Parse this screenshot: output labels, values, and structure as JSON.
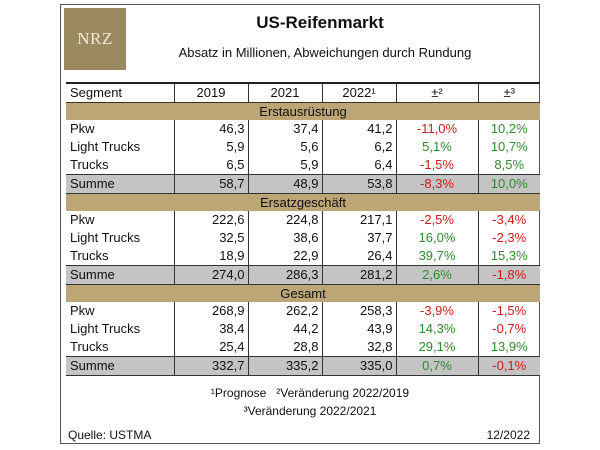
{
  "logo_text": "NRZ",
  "title": "US-Reifenmarkt",
  "subtitle": "Absatz in Millionen, Abweichungen durch Rundung",
  "columns": [
    "Segment",
    "2019",
    "2021",
    "2022¹",
    "±²",
    "±³"
  ],
  "sections": [
    {
      "name": "Erstausrüstung",
      "rows": [
        {
          "segment": "Pkw",
          "v2019": "46,3",
          "v2021": "37,4",
          "v2022": "41,2",
          "d2": "-11,0%",
          "d3": "10,2%"
        },
        {
          "segment": "Light Trucks",
          "v2019": "5,9",
          "v2021": "5,6",
          "v2022": "6,2",
          "d2": "5,1%",
          "d3": "10,7%"
        },
        {
          "segment": "Trucks",
          "v2019": "6,5",
          "v2021": "5,9",
          "v2022": "6,4",
          "d2": "-1,5%",
          "d3": "8,5%"
        }
      ],
      "sum": {
        "segment": "Summe",
        "v2019": "58,7",
        "v2021": "48,9",
        "v2022": "53,8",
        "d2": "-8,3%",
        "d3": "10,0%"
      }
    },
    {
      "name": "Ersatzgeschäft",
      "rows": [
        {
          "segment": "Pkw",
          "v2019": "222,6",
          "v2021": "224,8",
          "v2022": "217,1",
          "d2": "-2,5%",
          "d3": "-3,4%"
        },
        {
          "segment": "Light Trucks",
          "v2019": "32,5",
          "v2021": "38,6",
          "v2022": "37,7",
          "d2": "16,0%",
          "d3": "-2,3%"
        },
        {
          "segment": "Trucks",
          "v2019": "18,9",
          "v2021": "22,9",
          "v2022": "26,4",
          "d2": "39,7%",
          "d3": "15,3%"
        }
      ],
      "sum": {
        "segment": "Summe",
        "v2019": "274,0",
        "v2021": "286,3",
        "v2022": "281,2",
        "d2": "2,6%",
        "d3": "-1,8%"
      }
    },
    {
      "name": "Gesamt",
      "rows": [
        {
          "segment": "Pkw",
          "v2019": "268,9",
          "v2021": "262,2",
          "v2022": "258,3",
          "d2": "-3,9%",
          "d3": "-1,5%"
        },
        {
          "segment": "Light Trucks",
          "v2019": "38,4",
          "v2021": "44,2",
          "v2022": "43,9",
          "d2": "14,3%",
          "d3": "-0,7%"
        },
        {
          "segment": "Trucks",
          "v2019": "25,4",
          "v2021": "28,8",
          "v2022": "32,8",
          "d2": "29,1%",
          "d3": "13,9%"
        }
      ],
      "sum": {
        "segment": "Summe",
        "v2019": "332,7",
        "v2021": "335,2",
        "v2022": "335,0",
        "d2": "0,7%",
        "d3": "-0,1%"
      }
    }
  ],
  "footnote_1": "¹Prognose",
  "footnote_2": "²Veränderung 2022/2019",
  "footnote_3": "³Veränderung 2022/2021",
  "source": "Quelle: USTMA",
  "date": "12/2022",
  "colors": {
    "positive": "#2f8a2f",
    "negative": "#cc1b1b",
    "section": "#bca675",
    "sum": "#c4c4c4",
    "logo": "#9b8a5f"
  }
}
